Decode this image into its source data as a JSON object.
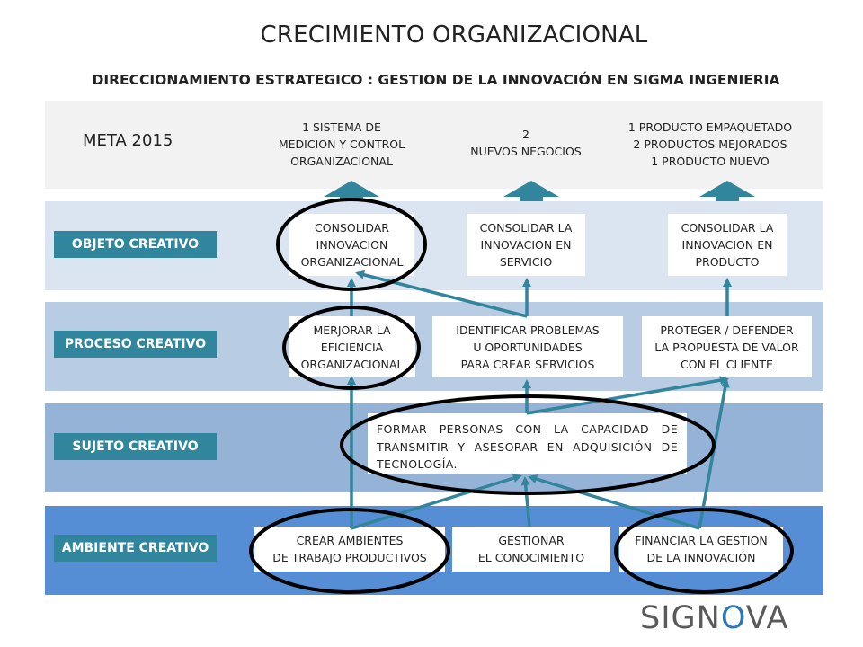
{
  "title": "CRECIMIENTO ORGANIZACIONAL",
  "subtitle": "DIRECCIONAMIENTO ESTRATEGICO : GESTION DE LA INNOVACIÓN EN SIGMA INGENIERIA",
  "meta": {
    "label": "META 2015",
    "goals": [
      "1 SISTEMA DE\nMEDICION Y CONTROL\nORGANIZACIONAL",
      "2\nNUEVOS NEGOCIOS",
      "1 PRODUCTO EMPAQUETADO\n2 PRODUCTOS MEJORADOS\n1 PRODUCTO NUEVO"
    ]
  },
  "rows": {
    "objeto": {
      "label": "OBJETO CREATIVO",
      "boxes": [
        "CONSOLIDAR\nINNOVACION\nORGANIZACIONAL",
        "CONSOLIDAR LA\nINNOVACION EN\nSERVICIO",
        "CONSOLIDAR LA\nINNOVACION EN\nPRODUCTO"
      ]
    },
    "proceso": {
      "label": "PROCESO CREATIVO",
      "boxes": [
        "MERJORAR LA\nEFICIENCIA\nORGANIZACIONAL",
        "IDENTIFICAR PROBLEMAS\nU OPORTUNIDADES\nPARA CREAR SERVICIOS",
        "PROTEGER / DEFENDER\nLA PROPUESTA DE VALOR\nCON EL CLIENTE"
      ]
    },
    "sujeto": {
      "label": "SUJETO CREATIVO",
      "boxes": [
        "FORMAR PERSONAS CON LA CAPACIDAD DE TRANSMITIR Y ASESORAR EN ADQUISICIÓN DE TECNOLOGÍA."
      ]
    },
    "ambiente": {
      "label": "AMBIENTE CREATIVO",
      "boxes": [
        "CREAR AMBIENTES\nDE TRABAJO PRODUCTIVOS",
        "GESTIONAR\nEL CONOCIMIENTO",
        "FINANCIAR LA GESTION\nDE LA INNOVACIÓN"
      ]
    }
  },
  "logo": {
    "text_start": "SIGN",
    "text_mark": "O",
    "text_end": "VA"
  },
  "colors": {
    "arrow": "#31859c",
    "label_bg": "#31859c",
    "highlight_ring": "#000000"
  }
}
